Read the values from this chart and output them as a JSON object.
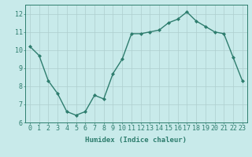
{
  "x": [
    0,
    1,
    2,
    3,
    4,
    5,
    6,
    7,
    8,
    9,
    10,
    11,
    12,
    13,
    14,
    15,
    16,
    17,
    18,
    19,
    20,
    21,
    22,
    23
  ],
  "y": [
    10.2,
    9.7,
    8.3,
    7.6,
    6.6,
    6.4,
    6.6,
    7.5,
    7.3,
    8.7,
    9.5,
    10.9,
    10.9,
    11.0,
    11.1,
    11.5,
    11.7,
    12.1,
    11.6,
    11.3,
    11.0,
    10.9,
    9.6,
    8.3
  ],
  "line_color": "#2e7d6e",
  "marker": "D",
  "marker_size": 2.0,
  "bg_color": "#c8eaea",
  "grid_color": "#aecece",
  "xlabel": "Humidex (Indice chaleur)",
  "ylim": [
    6,
    12.5
  ],
  "xlim": [
    -0.5,
    23.5
  ],
  "yticks": [
    6,
    7,
    8,
    9,
    10,
    11,
    12
  ],
  "xticks": [
    0,
    1,
    2,
    3,
    4,
    5,
    6,
    7,
    8,
    9,
    10,
    11,
    12,
    13,
    14,
    15,
    16,
    17,
    18,
    19,
    20,
    21,
    22,
    23
  ],
  "xlabel_fontsize": 6.5,
  "tick_fontsize": 6.0,
  "line_width": 1.0
}
